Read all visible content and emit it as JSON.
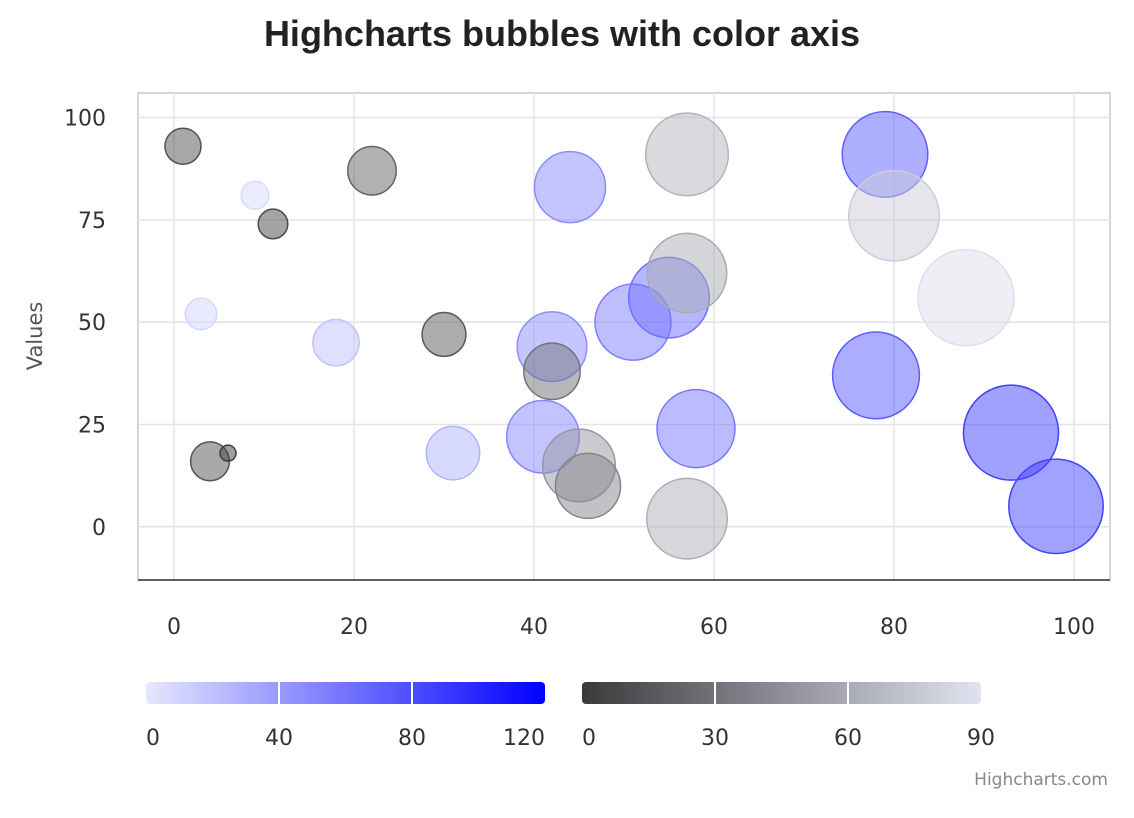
{
  "chart_data": {
    "type": "scatter",
    "subtype": "bubble",
    "title": "Highcharts bubbles with color axis",
    "ylabel": "Values",
    "xlim": [
      -4,
      104
    ],
    "ylim": [
      -13,
      106
    ],
    "x_ticks": [
      0,
      20,
      40,
      60,
      80,
      100
    ],
    "y_ticks": [
      0,
      25,
      50,
      75,
      100
    ],
    "grid": true,
    "credits": "Highcharts.com",
    "color_axes": [
      {
        "min": 0,
        "max": 120,
        "ticks": [
          0,
          40,
          80,
          120
        ],
        "min_color": "#e6e7ff",
        "max_color": "#0000ff"
      },
      {
        "min": 0,
        "max": 90,
        "ticks": [
          0,
          30,
          60,
          90
        ],
        "min_color": "#3a3a3c",
        "max_color": "#e1e3f0"
      }
    ],
    "series": [
      {
        "color_axis": 0,
        "points": [
          {
            "x": 9,
            "y": 81,
            "z": 7
          },
          {
            "x": 3,
            "y": 52,
            "z": 9
          },
          {
            "x": 18,
            "y": 45,
            "z": 20
          },
          {
            "x": 31,
            "y": 18,
            "z": 27
          },
          {
            "x": 44,
            "y": 83,
            "z": 48
          },
          {
            "x": 42,
            "y": 44,
            "z": 46
          },
          {
            "x": 41,
            "y": 22,
            "z": 50
          },
          {
            "x": 51,
            "y": 50,
            "z": 55
          },
          {
            "x": 55,
            "y": 56,
            "z": 62
          },
          {
            "x": 58,
            "y": 24,
            "z": 58
          },
          {
            "x": 79,
            "y": 91,
            "z": 70
          },
          {
            "x": 78,
            "y": 37,
            "z": 72
          },
          {
            "x": 93,
            "y": 23,
            "z": 86
          },
          {
            "x": 98,
            "y": 5,
            "z": 85
          }
        ]
      },
      {
        "color_axis": 1,
        "points": [
          {
            "x": 1,
            "y": 93,
            "z": 12
          },
          {
            "x": 11,
            "y": 74,
            "z": 8
          },
          {
            "x": 22,
            "y": 87,
            "z": 22
          },
          {
            "x": 4,
            "y": 16,
            "z": 14
          },
          {
            "x": 6,
            "y": 18,
            "z": 2
          },
          {
            "x": 30,
            "y": 47,
            "z": 18
          },
          {
            "x": 42,
            "y": 38,
            "z": 30
          },
          {
            "x": 45,
            "y": 15,
            "z": 50
          },
          {
            "x": 46,
            "y": 10,
            "z": 40
          },
          {
            "x": 57,
            "y": 91,
            "z": 65
          },
          {
            "x": 57,
            "y": 62,
            "z": 60
          },
          {
            "x": 57,
            "y": 2,
            "z": 62
          },
          {
            "x": 80,
            "y": 76,
            "z": 78
          },
          {
            "x": 88,
            "y": 56,
            "z": 88
          }
        ]
      }
    ]
  }
}
